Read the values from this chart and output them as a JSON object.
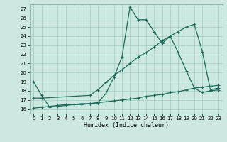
{
  "xlabel": "Humidex (Indice chaleur)",
  "bg_color": "#cce8e0",
  "grid_color": "#a8cfc8",
  "line_color": "#1a6b5a",
  "xlim": [
    -0.5,
    23.5
  ],
  "ylim": [
    15.5,
    27.5
  ],
  "xticks": [
    0,
    1,
    2,
    3,
    4,
    5,
    6,
    7,
    8,
    9,
    10,
    11,
    12,
    13,
    14,
    15,
    16,
    17,
    18,
    19,
    20,
    21,
    22,
    23
  ],
  "yticks": [
    16,
    17,
    18,
    19,
    20,
    21,
    22,
    23,
    24,
    25,
    26,
    27
  ],
  "line1_x": [
    0,
    1,
    2,
    3,
    4,
    5,
    6,
    7,
    8,
    9,
    10,
    11,
    12,
    13,
    14,
    15,
    16,
    17,
    18,
    19,
    20,
    21,
    22,
    23
  ],
  "line1_y": [
    19.0,
    17.5,
    16.2,
    16.3,
    16.4,
    16.5,
    16.5,
    16.6,
    16.7,
    17.7,
    19.5,
    21.7,
    27.2,
    25.8,
    25.8,
    24.5,
    23.2,
    24.0,
    22.2,
    20.2,
    18.3,
    17.8,
    18.0,
    18.1
  ],
  "line2_x": [
    0,
    1,
    7,
    8,
    9,
    10,
    11,
    12,
    13,
    14,
    15,
    16,
    17,
    18,
    19,
    20,
    21,
    22,
    23
  ],
  "line2_y": [
    17.2,
    17.2,
    17.5,
    18.1,
    18.9,
    19.7,
    20.3,
    21.0,
    21.7,
    22.2,
    22.8,
    23.5,
    24.0,
    24.5,
    25.0,
    25.3,
    22.3,
    18.1,
    18.3
  ],
  "line3_x": [
    0,
    1,
    2,
    3,
    4,
    5,
    6,
    7,
    8,
    9,
    10,
    11,
    12,
    13,
    14,
    15,
    16,
    17,
    18,
    19,
    20,
    21,
    22,
    23
  ],
  "line3_y": [
    16.1,
    16.2,
    16.3,
    16.4,
    16.5,
    16.5,
    16.6,
    16.6,
    16.7,
    16.8,
    16.9,
    17.0,
    17.1,
    17.2,
    17.4,
    17.5,
    17.6,
    17.8,
    17.9,
    18.1,
    18.3,
    18.4,
    18.5,
    18.6
  ]
}
